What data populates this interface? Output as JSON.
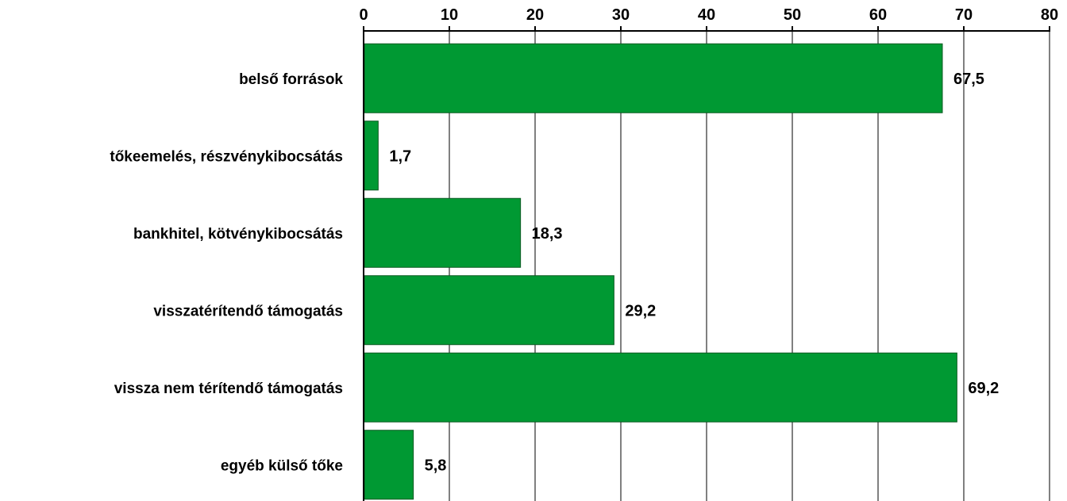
{
  "chart_data": {
    "type": "bar",
    "orientation": "horizontal",
    "categories": [
      "belső források",
      "tőkeemelés, részvénykibocsátás",
      "bankhitel, kötvénykibocsátás",
      "visszatérítendő támogatás",
      "vissza nem térítendő támogatás",
      "egyéb külső tőke"
    ],
    "values": [
      67.5,
      1.7,
      18.3,
      29.2,
      69.2,
      5.8
    ],
    "data_labels": [
      "67,5",
      "1,7",
      "18,3",
      "29,2",
      "69,2",
      "5,8"
    ],
    "x_ticks": [
      "0",
      "10",
      "20",
      "30",
      "40",
      "50",
      "60",
      "70",
      "80"
    ],
    "xlim": [
      0,
      80
    ],
    "x_axis_position": "top",
    "grid": true,
    "legend": "none",
    "bar_color": "#009933",
    "title": "",
    "xlabel": "",
    "ylabel": ""
  }
}
